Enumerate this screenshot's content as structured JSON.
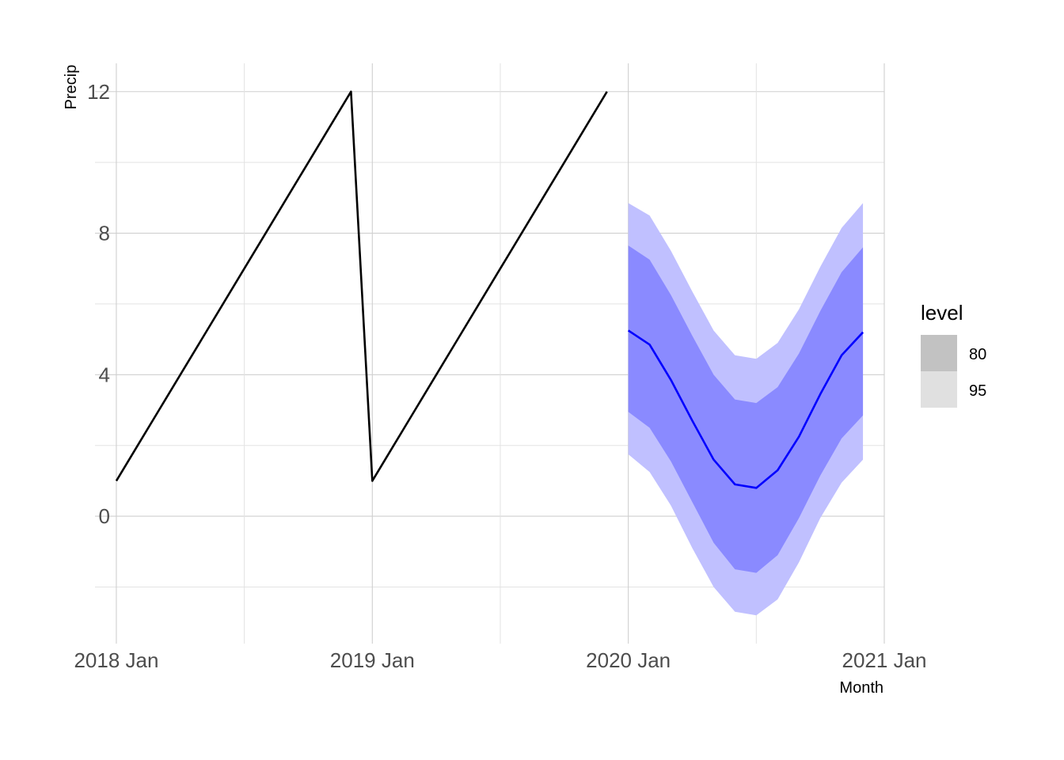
{
  "chart_data": {
    "type": "line",
    "xlabel": "Month",
    "ylabel": "Precip",
    "xlim": [
      "2017-12",
      "2021-01"
    ],
    "ylim": [
      -3.6,
      12.8
    ],
    "x_ticks": [
      {
        "x": "2018-01",
        "label": "2018 Jan"
      },
      {
        "x": "2019-01",
        "label": "2019 Jan"
      },
      {
        "x": "2020-01",
        "label": "2020 Jan"
      },
      {
        "x": "2021-01",
        "label": "2021 Jan"
      }
    ],
    "y_ticks": [
      {
        "y": 0,
        "label": "0"
      },
      {
        "y": 4,
        "label": "4"
      },
      {
        "y": 8,
        "label": "8"
      },
      {
        "y": 12,
        "label": "12"
      }
    ],
    "grid": true,
    "legend": {
      "title": "level",
      "position": "right",
      "entries": [
        {
          "label": "80",
          "color": "#c2c2c2"
        },
        {
          "label": "95",
          "color": "#e0e0e0"
        }
      ]
    },
    "colors": {
      "history_line": "#000000",
      "forecast_line": "#0000ff",
      "band_80": "#8a8aff",
      "band_95": "#c0c0ff"
    },
    "series": [
      {
        "role": "observed",
        "x": [
          "2018-01",
          "2018-02",
          "2018-03",
          "2018-04",
          "2018-05",
          "2018-06",
          "2018-07",
          "2018-08",
          "2018-09",
          "2018-10",
          "2018-11",
          "2018-12",
          "2019-01",
          "2019-02",
          "2019-03",
          "2019-04",
          "2019-05",
          "2019-06",
          "2019-07",
          "2019-08",
          "2019-09",
          "2019-10",
          "2019-11",
          "2019-12"
        ],
        "values": [
          1,
          2,
          3,
          4,
          5,
          6,
          7,
          8,
          9,
          10,
          11,
          12,
          1,
          2,
          3,
          4,
          5,
          6,
          7,
          8,
          9,
          10,
          11,
          12
        ]
      },
      {
        "role": "forecast",
        "x": [
          "2020-01",
          "2020-02",
          "2020-03",
          "2020-04",
          "2020-05",
          "2020-06",
          "2020-07",
          "2020-08",
          "2020-09",
          "2020-10",
          "2020-11",
          "2020-12"
        ],
        "values": [
          5.25,
          4.85,
          3.85,
          2.7,
          1.6,
          0.9,
          0.8,
          1.3,
          2.25,
          3.45,
          4.55,
          5.2
        ],
        "lower_80": [
          2.95,
          2.5,
          1.55,
          0.4,
          -0.75,
          -1.5,
          -1.6,
          -1.1,
          -0.05,
          1.15,
          2.2,
          2.85
        ],
        "upper_80": [
          7.65,
          7.25,
          6.25,
          5.1,
          4.0,
          3.3,
          3.2,
          3.65,
          4.6,
          5.8,
          6.9,
          7.6
        ],
        "lower_95": [
          1.75,
          1.25,
          0.3,
          -0.9,
          -2.0,
          -2.7,
          -2.8,
          -2.35,
          -1.3,
          -0.05,
          0.95,
          1.6
        ],
        "upper_95": [
          8.85,
          8.5,
          7.5,
          6.35,
          5.25,
          4.55,
          4.45,
          4.9,
          5.85,
          7.05,
          8.15,
          8.85
        ]
      }
    ]
  }
}
